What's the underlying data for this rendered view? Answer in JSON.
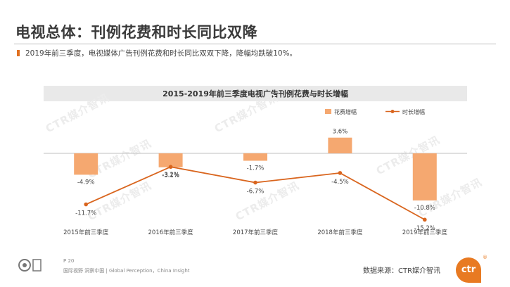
{
  "header": {
    "title": "电视总体：刊例花费和时长同比双降",
    "subtitle": "2019年前三季度，电视媒体广告刊例花费和时长同比双双下降，降幅均跌破10%。"
  },
  "watermark_text": "CTR媒介智讯",
  "footer": {
    "page": "P 20",
    "tagline": "国际视野 洞察中国 | Global Perception，China Insight",
    "source": "数据来源：CTR媒介智讯",
    "logo_text": "ctr",
    "logo_mark": "®"
  },
  "colors": {
    "bar": "#f5a870",
    "line": "#d9651e",
    "accent": "#e07020",
    "header_bg": "#e9e9e9"
  },
  "chart_data": {
    "type": "bar",
    "title": "2015-2019年前三季度电视广告刊例花费与时长增幅",
    "categories": [
      "2015年前三季度",
      "2016年前三季度",
      "2017年前三季度",
      "2018年前三季度",
      "2019年前三季度"
    ],
    "series": [
      {
        "name": "花费增幅",
        "type": "bar",
        "values": [
          -4.9,
          -3.2,
          -1.7,
          3.6,
          -10.8
        ],
        "labels": [
          "-4.9%",
          "-3.2%",
          "-1.7%",
          "3.6%",
          "-10.8%"
        ]
      },
      {
        "name": "时长增幅",
        "type": "line",
        "values": [
          -11.7,
          -3.1,
          -6.7,
          -4.5,
          -15.2
        ],
        "labels": [
          "-11.7%",
          "-3.1%",
          "-6.7%",
          "-4.5%",
          "-15.2%"
        ]
      }
    ],
    "legend_position": "top-right",
    "grid": false,
    "ylim": [
      -16,
      4
    ]
  }
}
